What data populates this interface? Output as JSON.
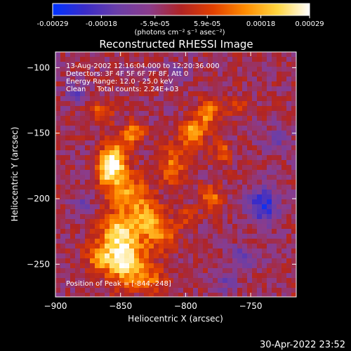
{
  "colorbar": {
    "ticks": [
      "-0.00029",
      "-0.00018",
      "-5.9e-05",
      "5.9e-05",
      "0.00018",
      "0.00029"
    ],
    "tick_values": [
      -0.00029,
      -0.00018,
      -5.9e-05,
      5.9e-05,
      0.00018,
      0.00029
    ],
    "range": [
      -0.00029,
      0.00029
    ],
    "unit_label": "(photons cm⁻² s⁻¹ asec⁻²)"
  },
  "chart_data": {
    "type": "heatmap",
    "title": "Reconstructed RHESSI Image",
    "xlabel": "Heliocentric X (arcsec)",
    "ylabel": "Heliocentric Y (arcsec)",
    "xlim": [
      -900,
      -715
    ],
    "ylim": [
      -275,
      -88
    ],
    "x_ticks": [
      -900,
      -850,
      -800,
      -750
    ],
    "y_ticks": [
      -100,
      -150,
      -200,
      -250
    ],
    "x_tick_labels": [
      "−900",
      "−850",
      "−800",
      "−750"
    ],
    "y_tick_labels": [
      "−100",
      "−150",
      "−200",
      "−250"
    ],
    "annotations": [
      "13-Aug-2002 12:16:04.000 to 12:20:36.000",
      "Detectors: 3F 4F 5F 6F 7F 8F, Att 0",
      "Energy Range: 12.0 - 25.0 keV",
      "Clean     Total counts: 2.24E+03"
    ],
    "peak_label": "Position of Peak = [-844,-248]",
    "peak": {
      "x": -844,
      "y": -248
    },
    "blobs": [
      {
        "x": -845,
        "y": -248,
        "amp": 1.0,
        "sx": 10,
        "sy": 12
      },
      {
        "x": -852,
        "y": -225,
        "amp": 0.85,
        "sx": 9,
        "sy": 10
      },
      {
        "x": -865,
        "y": -245,
        "amp": 0.6,
        "sx": 8,
        "sy": 8
      },
      {
        "x": -830,
        "y": -215,
        "amp": 0.7,
        "sx": 9,
        "sy": 10
      },
      {
        "x": -845,
        "y": -195,
        "amp": 0.65,
        "sx": 10,
        "sy": 10
      },
      {
        "x": -855,
        "y": -170,
        "amp": 0.95,
        "sx": 7,
        "sy": 9
      },
      {
        "x": -860,
        "y": -180,
        "amp": 0.7,
        "sx": 6,
        "sy": 8
      },
      {
        "x": -840,
        "y": -150,
        "amp": 0.6,
        "sx": 6,
        "sy": 6
      },
      {
        "x": -865,
        "y": -135,
        "amp": 0.45,
        "sx": 7,
        "sy": 6
      },
      {
        "x": -810,
        "y": -175,
        "amp": 0.5,
        "sx": 8,
        "sy": 10
      },
      {
        "x": -795,
        "y": -150,
        "amp": 0.75,
        "sx": 7,
        "sy": 7
      },
      {
        "x": -783,
        "y": -135,
        "amp": 0.65,
        "sx": 6,
        "sy": 7
      },
      {
        "x": -780,
        "y": -200,
        "amp": 0.5,
        "sx": 6,
        "sy": 7
      },
      {
        "x": -772,
        "y": -165,
        "amp": 0.45,
        "sx": 5,
        "sy": 6
      },
      {
        "x": -818,
        "y": -230,
        "amp": 0.45,
        "sx": 8,
        "sy": 8
      },
      {
        "x": -825,
        "y": -262,
        "amp": 0.4,
        "sx": 8,
        "sy": 7
      },
      {
        "x": -800,
        "y": -215,
        "amp": 0.3,
        "sx": 6,
        "sy": 6
      },
      {
        "x": -760,
        "y": -130,
        "amp": 0.25,
        "sx": 6,
        "sy": 6
      },
      {
        "x": -740,
        "y": -205,
        "amp": -0.7,
        "sx": 8,
        "sy": 10
      },
      {
        "x": -755,
        "y": -245,
        "amp": -0.4,
        "sx": 7,
        "sy": 7
      },
      {
        "x": -885,
        "y": -120,
        "amp": -0.35,
        "sx": 6,
        "sy": 6
      },
      {
        "x": -730,
        "y": -155,
        "amp": -0.3,
        "sx": 7,
        "sy": 7
      },
      {
        "x": -880,
        "y": -205,
        "amp": -0.3,
        "sx": 6,
        "sy": 6
      },
      {
        "x": -805,
        "y": -105,
        "amp": -0.3,
        "sx": 6,
        "sy": 5
      },
      {
        "x": -770,
        "y": -265,
        "amp": -0.3,
        "sx": 6,
        "sy": 6
      }
    ],
    "background_level": -0.12,
    "noise_amp": 0.18
  },
  "footer_date": "30-Apr-2022 23:52",
  "colors": {
    "background": "#000000",
    "text": "#ffffff",
    "cmap": [
      "#0033ff",
      "#3a2cc8",
      "#6a3ea8",
      "#8a3c8c",
      "#b02424",
      "#e24000",
      "#ff8c00",
      "#ffd640",
      "#ffffff"
    ]
  }
}
